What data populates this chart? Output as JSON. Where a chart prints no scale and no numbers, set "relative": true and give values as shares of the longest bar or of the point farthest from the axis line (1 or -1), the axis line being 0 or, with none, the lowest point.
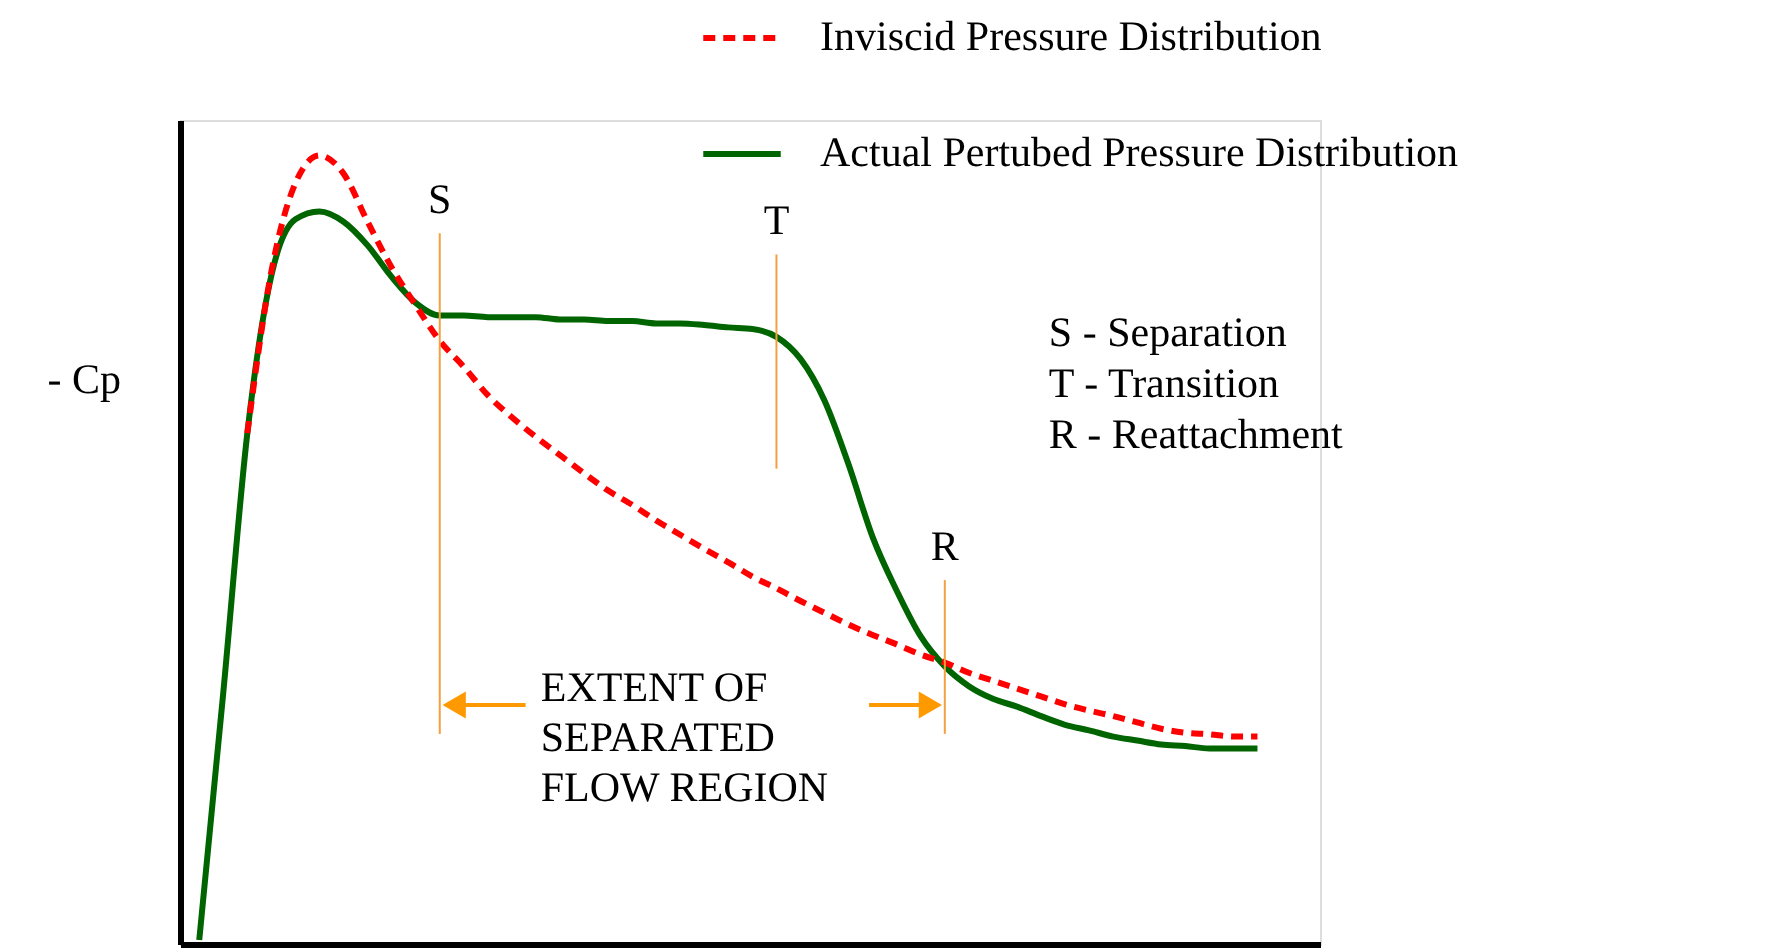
{
  "chart_data": {
    "type": "line",
    "relative": true,
    "ylabel": "- Cp",
    "legend": "top right",
    "marker": "none",
    "categories": [
      null,
      null,
      null,
      null,
      null,
      null,
      null,
      null,
      null,
      null,
      null,
      null,
      null,
      null,
      null,
      null,
      null,
      null,
      null,
      null,
      null,
      null,
      null,
      null,
      null,
      null,
      null,
      null,
      null,
      null,
      null,
      null,
      null,
      null,
      null,
      null,
      null,
      null,
      null,
      null,
      null,
      null,
      null,
      null,
      null
    ],
    "series": [
      {
        "name": "Inviscid Pressure Distribution",
        "color": "#ff0000",
        "line_style": "dashed",
        "values": [
          null,
          null,
          0.648,
          0.853,
          0.965,
          1,
          0.977,
          0.916,
          0.858,
          0.81,
          0.765,
          0.732,
          0.696,
          0.668,
          0.643,
          0.62,
          0.597,
          0.575,
          0.557,
          0.537,
          0.519,
          0.501,
          0.484,
          0.466,
          0.451,
          0.435,
          0.42,
          0.405,
          0.392,
          0.38,
          0.367,
          0.357,
          0.344,
          0.334,
          0.324,
          0.314,
          0.304,
          0.296,
          0.289,
          0.281,
          0.273,
          0.268,
          0.266,
          0.263,
          0.263
        ]
      },
      {
        "name": "Actual Pertubed Pressure Distribution",
        "color": "#006400",
        "line_style": "solid",
        "values": [
          0.005,
          0.319,
          0.648,
          0.848,
          0.919,
          0.929,
          0.916,
          0.886,
          0.846,
          0.813,
          0.797,
          0.797,
          0.795,
          0.795,
          0.795,
          0.792,
          0.792,
          0.79,
          0.79,
          0.787,
          0.787,
          0.785,
          0.782,
          0.78,
          0.77,
          0.742,
          0.689,
          0.608,
          0.516,
          0.448,
          0.39,
          0.352,
          0.327,
          0.311,
          0.301,
          0.289,
          0.278,
          0.271,
          0.263,
          0.258,
          0.253,
          0.251,
          0.248,
          0.248,
          0.248
        ]
      }
    ],
    "annotations": [
      "S",
      "T",
      "R",
      "S - Separation",
      "T - Transition",
      "R - Reattachment",
      "EXTENT OF\nSEPARATED\nFLOW REGION"
    ]
  }
}
